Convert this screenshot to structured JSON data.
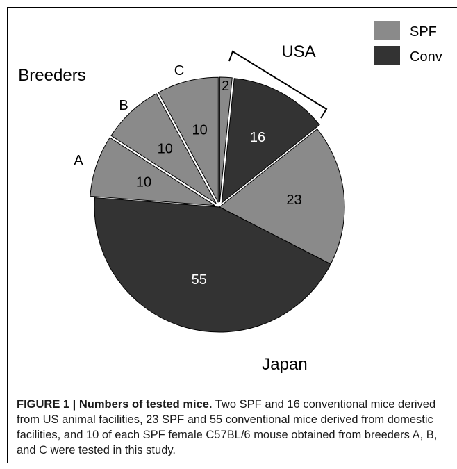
{
  "chart_data": {
    "type": "pie",
    "slices": [
      {
        "label": "2",
        "value": 2,
        "category": "SPF",
        "origin": "USA",
        "exploded": true
      },
      {
        "label": "16",
        "value": 16,
        "category": "Conv",
        "origin": "USA",
        "exploded": true
      },
      {
        "label": "23",
        "value": 23,
        "category": "SPF",
        "origin": "Japan",
        "exploded": false
      },
      {
        "label": "55",
        "value": 55,
        "category": "Conv",
        "origin": "Japan",
        "exploded": false
      },
      {
        "label": "10",
        "value": 10,
        "category": "SPF",
        "origin": "Breeders",
        "breeder": "A",
        "exploded": true
      },
      {
        "label": "10",
        "value": 10,
        "category": "SPF",
        "origin": "Breeders",
        "breeder": "B",
        "exploded": true
      },
      {
        "label": "10",
        "value": 10,
        "category": "SPF",
        "origin": "Breeders",
        "breeder": "C",
        "exploded": true
      }
    ],
    "legend": [
      {
        "name": "SPF",
        "color": "#8a8a8a"
      },
      {
        "name": "Conv",
        "color": "#333333"
      }
    ],
    "legend_position": "top-right",
    "group_labels": {
      "usa": "USA",
      "japan": "Japan",
      "breeders": "Breeders"
    },
    "breeder_labels": [
      "A",
      "B",
      "C"
    ]
  },
  "caption": {
    "title": "FIGURE 1 | Numbers of tested mice.",
    "body": " Two SPF and 16 conventional mice derived from US animal facilities, 23 SPF and 55 conventional mice derived from domestic facilities, and 10 of each SPF female C57BL/6 mouse obtained from breeders A, B, and C were tested in this study."
  }
}
